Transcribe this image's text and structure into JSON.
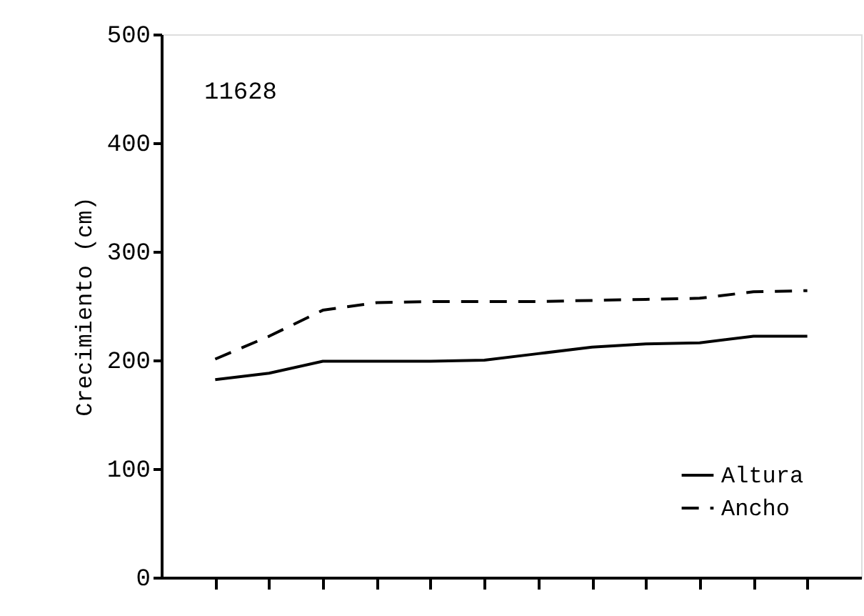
{
  "chart_data": {
    "type": "line",
    "ylabel": "Crecimiento (cm)",
    "categories": [
      null,
      null,
      null,
      null,
      null,
      null,
      null,
      null,
      null,
      null,
      null,
      null
    ],
    "series": [
      {
        "name": "Altura",
        "color": "#000000",
        "line_style": "solid",
        "values": [
          182,
          188,
          199,
          199,
          199,
          200,
          206,
          212,
          215,
          216,
          222,
          222
        ]
      },
      {
        "name": "Ancho",
        "color": "#000000",
        "line_style": "dashed",
        "values": [
          201,
          222,
          246,
          253,
          254,
          254,
          254,
          255,
          256,
          257,
          263,
          264
        ]
      }
    ],
    "ylim": [
      0,
      500
    ],
    "yticks": [
      0,
      100,
      200,
      300,
      400,
      500
    ],
    "tick_labels": "y",
    "grid": false,
    "legend": "bottom right",
    "marker": "none",
    "annotations": [
      "11628"
    ]
  }
}
